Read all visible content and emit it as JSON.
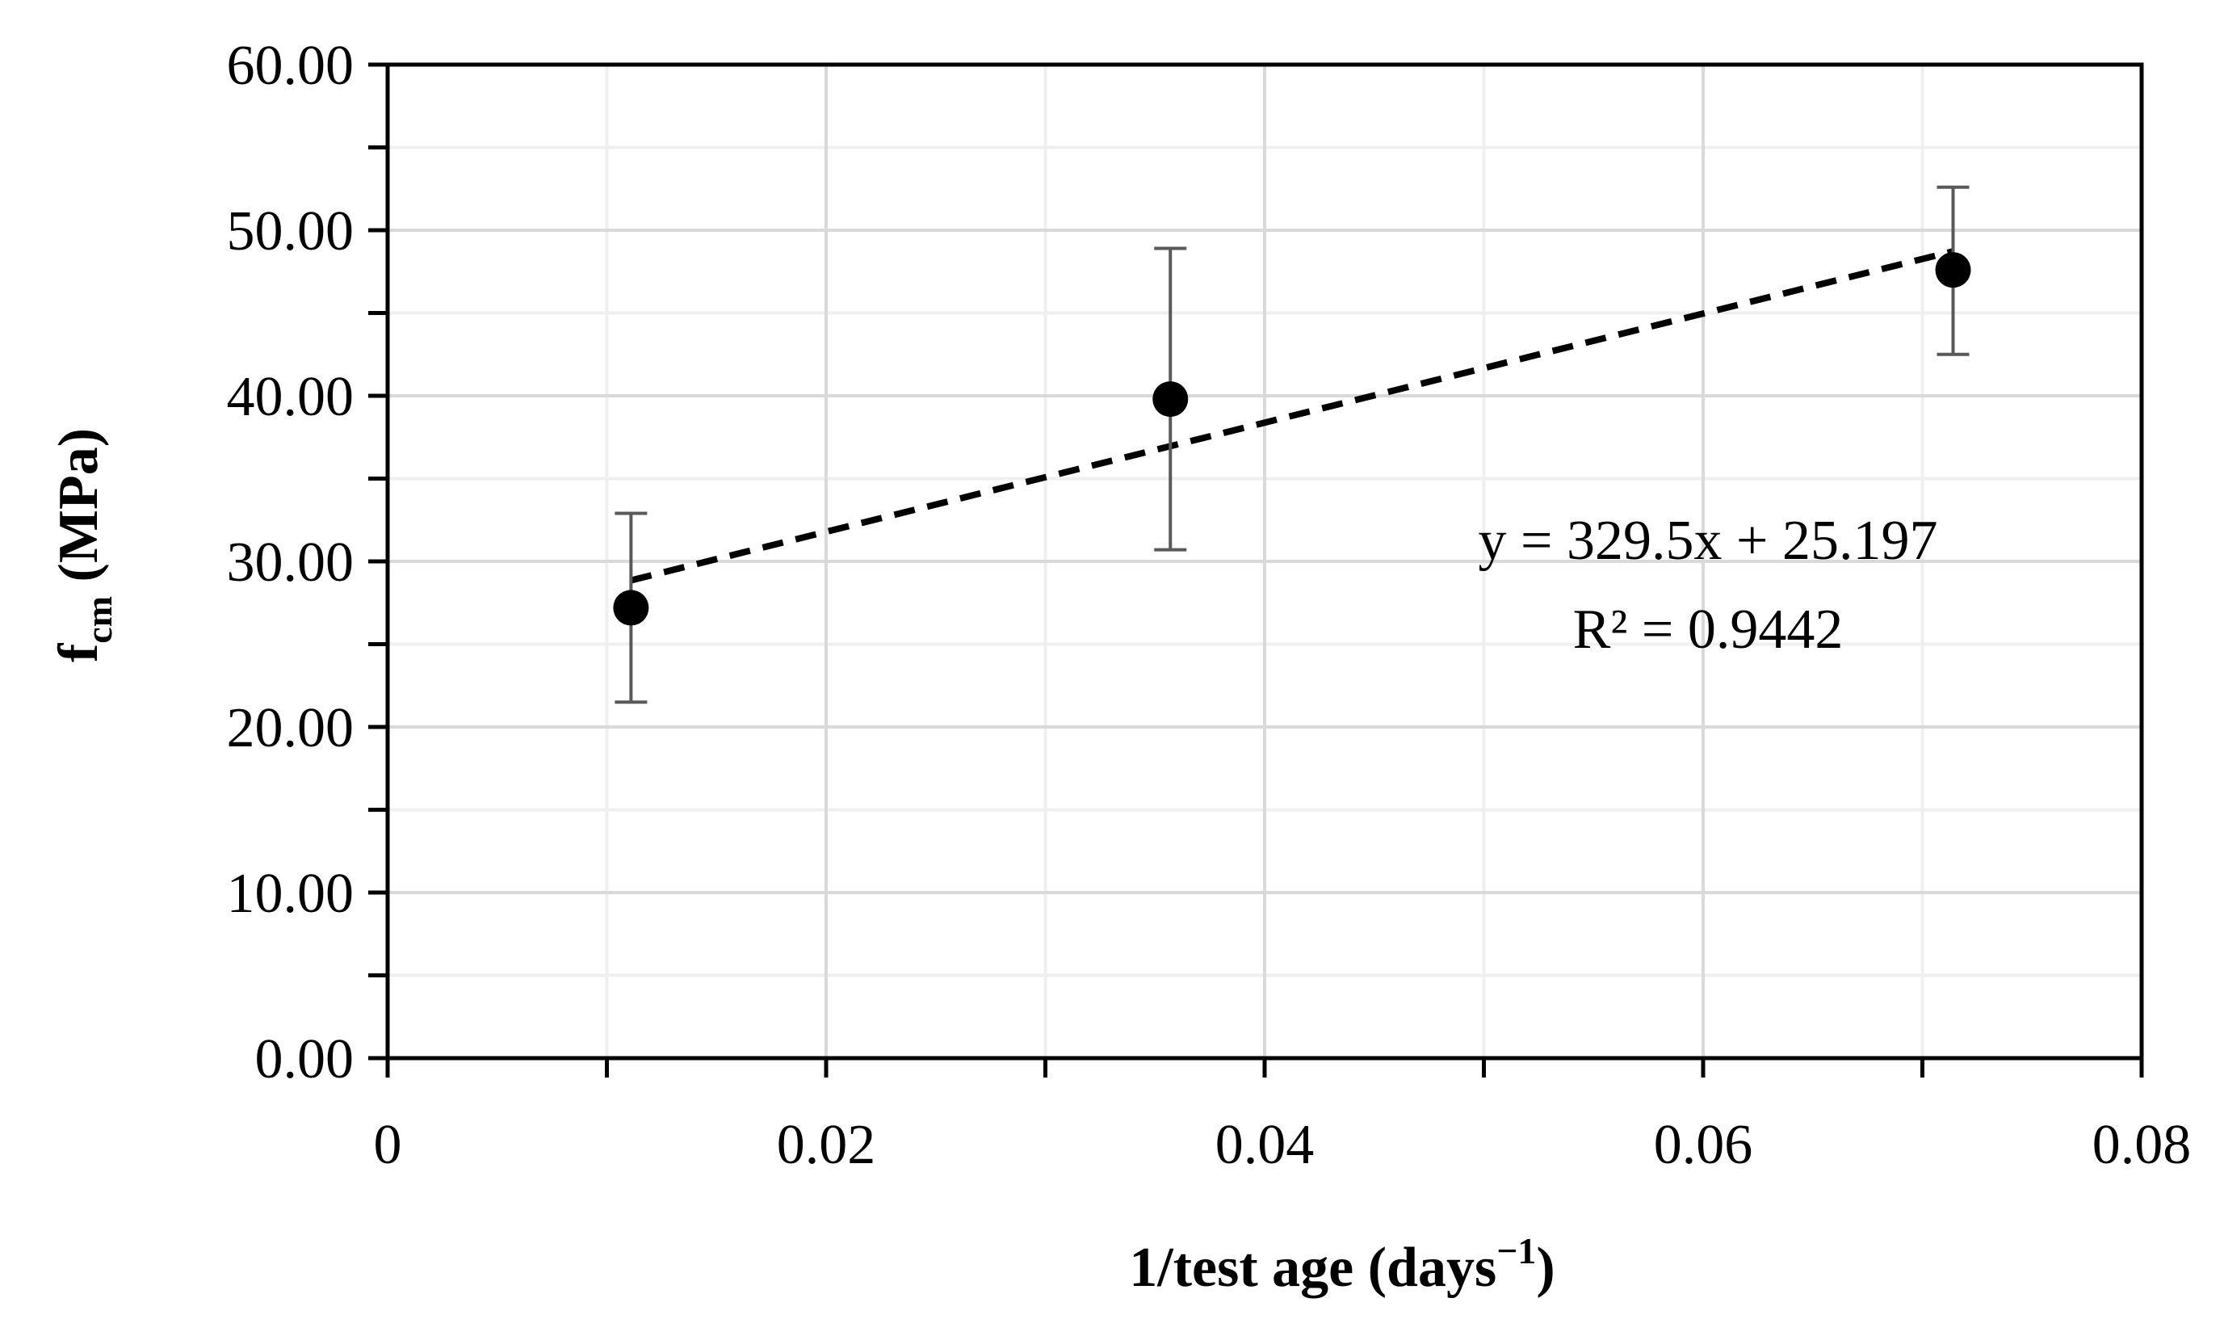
{
  "chart_data": {
    "type": "scatter",
    "xlabel": "1/test age (days",
    "xlabel_sup": "−1",
    "xlabel_end": ")",
    "ylabel": "f",
    "ylabel_sub": "cm",
    "ylabel_end": " (MPa)",
    "xlim": [
      0,
      0.08
    ],
    "ylim": [
      0,
      60
    ],
    "x_ticks": [
      0,
      0.02,
      0.04,
      0.06,
      0.08
    ],
    "x_tick_labels": [
      "0",
      "0.02",
      "0.04",
      "0.06",
      "0.08"
    ],
    "x_minor_ticks": [
      0.01,
      0.03,
      0.05,
      0.07
    ],
    "y_ticks": [
      0,
      10,
      20,
      30,
      40,
      50,
      60
    ],
    "y_tick_labels": [
      "0.00",
      "10.00",
      "20.00",
      "30.00",
      "40.00",
      "50.00",
      "60.00"
    ],
    "y_minor_ticks": [
      5,
      15,
      25,
      35,
      45,
      55
    ],
    "grid": true,
    "series": [
      {
        "points": [
          {
            "x": 0.0111,
            "y": 27.2,
            "err_low": 21.5,
            "err_high": 32.9
          },
          {
            "x": 0.0357,
            "y": 39.8,
            "err_low": 30.7,
            "err_high": 48.9
          },
          {
            "x": 0.0714,
            "y": 47.6,
            "err_low": 42.5,
            "err_high": 52.6
          }
        ],
        "marker_color": "#000000",
        "error_bar_color": "#595959"
      }
    ],
    "trendline": {
      "type": "linear",
      "slope": 329.5,
      "intercept": 25.197,
      "x_range": [
        0.0111,
        0.0714
      ],
      "style": "dashed",
      "color": "#000000"
    },
    "annotations": {
      "equation": "y = 329.5x + 25.197",
      "r_squared": "R² = 0.9442"
    }
  }
}
